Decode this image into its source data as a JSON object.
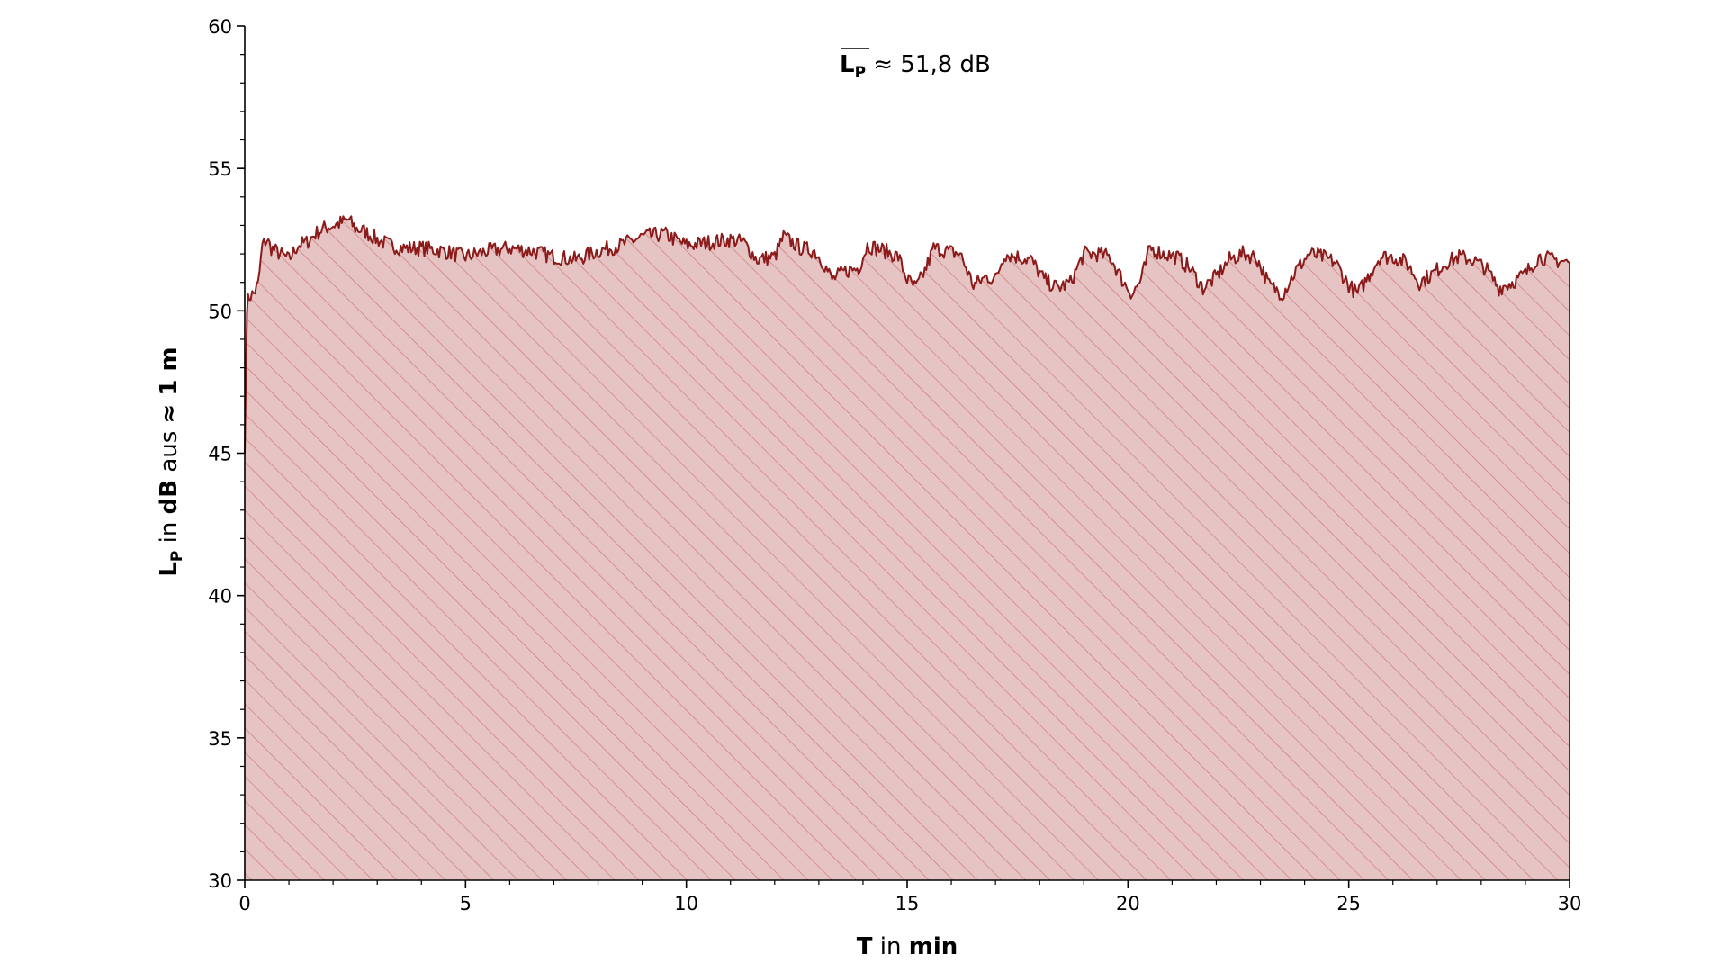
{
  "chart_data": {
    "type": "area",
    "annotation": {
      "symbol": "L",
      "subscript": "P",
      "rest": " ≈ 51,8 dB"
    },
    "xlabel": {
      "bold1": "T",
      "normal": " in ",
      "bold2": "min"
    },
    "ylabel": {
      "symbol": "L",
      "subscript": "P",
      "normal1": " in ",
      "bold1": "dB",
      "normal2": " aus ",
      "bold2": "≈ 1 m"
    },
    "xlim": [
      0,
      30
    ],
    "ylim": [
      30,
      60
    ],
    "xticks": [
      0,
      5,
      10,
      15,
      20,
      25,
      30
    ],
    "yticks": [
      30,
      35,
      40,
      45,
      50,
      55,
      60
    ],
    "grid": false,
    "fill_hatch": "diagonal",
    "series": [
      {
        "x": [
          0,
          0.05,
          0.1,
          0.2,
          0.3,
          0.4,
          0.5,
          0.6,
          0.8,
          1.0,
          1.2,
          1.4,
          1.6,
          1.8,
          2.0,
          2.2,
          2.35,
          2.5,
          2.7,
          3.0,
          3.3,
          3.6,
          4.0,
          4.5,
          5.0,
          5.5,
          6.0,
          6.5,
          7.0,
          7.5,
          8.0,
          8.5,
          9.0,
          9.5,
          10.0,
          10.5,
          11.0,
          11.3,
          11.6,
          12.0,
          12.2,
          12.4,
          12.6,
          12.9,
          13.1,
          13.3,
          13.6,
          13.9,
          14.1,
          14.3,
          14.5,
          14.8,
          15.0,
          15.2,
          15.4,
          15.6,
          15.9,
          16.2,
          16.5,
          16.8,
          17.0,
          17.2,
          17.5,
          17.8,
          18.1,
          18.4,
          18.7,
          19.0,
          19.3,
          19.6,
          19.9,
          20.1,
          20.3,
          20.5,
          20.8,
          21.1,
          21.4,
          21.7,
          22.0,
          22.3,
          22.6,
          22.9,
          23.2,
          23.5,
          23.8,
          24.1,
          24.4,
          24.7,
          25.0,
          25.2,
          25.4,
          25.7,
          26.0,
          26.3,
          26.6,
          26.9,
          27.2,
          27.5,
          27.8,
          28.1,
          28.4,
          28.7,
          29.0,
          29.3,
          29.6,
          30.0
        ],
        "y": [
          45.0,
          50.2,
          50.5,
          50.6,
          50.9,
          52.3,
          52.5,
          52.2,
          52.0,
          51.8,
          52.3,
          52.4,
          52.7,
          52.9,
          53.0,
          53.1,
          53.2,
          52.9,
          52.8,
          52.5,
          52.3,
          52.2,
          52.2,
          52.1,
          51.9,
          52.1,
          52.2,
          52.1,
          51.9,
          51.8,
          52.1,
          52.3,
          52.6,
          52.7,
          52.3,
          52.4,
          52.5,
          52.4,
          51.8,
          51.9,
          52.6,
          52.4,
          52.2,
          52.1,
          51.7,
          51.1,
          51.4,
          51.5,
          52.3,
          52.2,
          52.1,
          51.9,
          51.1,
          50.8,
          51.4,
          52.2,
          52.1,
          52.0,
          50.9,
          51.2,
          51.1,
          52.0,
          51.9,
          51.8,
          51.1,
          50.8,
          51.0,
          52.0,
          52.0,
          51.9,
          51.0,
          50.6,
          51.1,
          52.2,
          52.0,
          51.9,
          51.5,
          50.8,
          51.2,
          51.8,
          52.0,
          51.9,
          50.9,
          50.6,
          51.4,
          52.0,
          51.9,
          51.7,
          50.9,
          50.6,
          51.1,
          51.9,
          51.9,
          51.7,
          51.0,
          51.3,
          51.7,
          51.9,
          51.8,
          51.5,
          50.8,
          51.0,
          51.3,
          51.9,
          51.8,
          51.7
        ]
      }
    ],
    "colors": {
      "line": "#8b1a1a",
      "fill": "#e6c4c4",
      "hatch": "#cd7a7a",
      "axis": "#000000"
    }
  }
}
